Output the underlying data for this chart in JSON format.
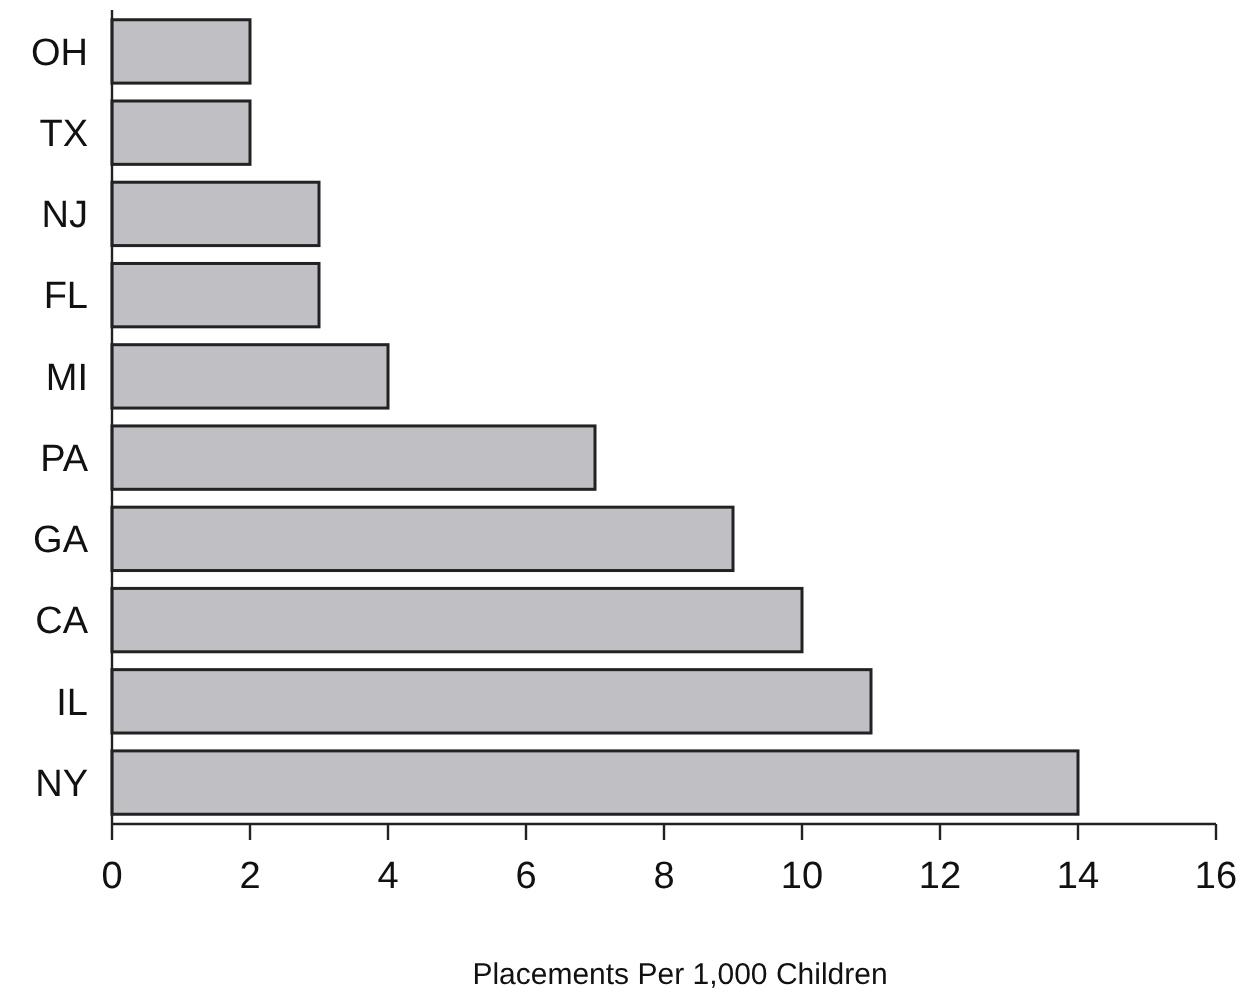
{
  "chart_data": {
    "type": "bar",
    "orientation": "horizontal",
    "xlabel": "Placements Per 1,000 Children",
    "categories": [
      "OH",
      "TX",
      "NJ",
      "FL",
      "MI",
      "PA",
      "GA",
      "CA",
      "IL",
      "NY"
    ],
    "values": [
      2,
      2,
      3,
      3,
      4,
      7,
      9,
      10,
      11,
      14
    ],
    "color": "#c0c0c4",
    "xlim": [
      0,
      16
    ],
    "xticks": [
      0,
      2,
      4,
      6,
      8,
      10,
      12,
      14,
      16
    ],
    "grid": false
  }
}
